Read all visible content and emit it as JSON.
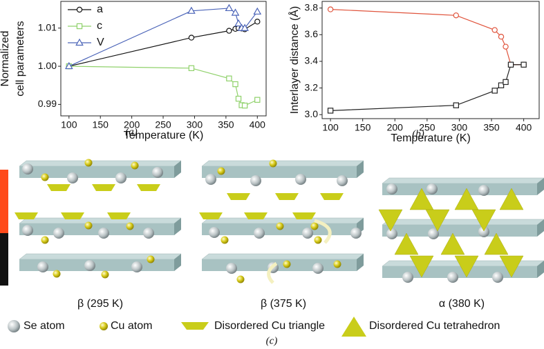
{
  "chart_data": [
    {
      "type": "line",
      "panel_label": "(a)",
      "xlabel": "Temperature (K)",
      "ylabel": [
        "Normalized",
        "cell parameters"
      ],
      "x": [
        100,
        295,
        355,
        365,
        370,
        375,
        380,
        400
      ],
      "xlim": [
        87,
        414
      ],
      "xticks": [
        100,
        150,
        200,
        250,
        300,
        350,
        400
      ],
      "ylim": [
        0.987,
        1.017
      ],
      "yticks": [
        0.99,
        {
          "value": 1.0,
          "label": "1.00"
        },
        1.01
      ],
      "legend": "upper left",
      "series": [
        {
          "name": "a",
          "color": "#111111",
          "marker": "circle",
          "values": [
            1.0,
            1.0075,
            1.0093,
            1.0098,
            1.01,
            1.0099,
            1.0097,
            1.0117
          ]
        },
        {
          "name": "c",
          "color": "#8fd16a",
          "marker": "square",
          "values": [
            1.0,
            0.9995,
            0.9968,
            0.9953,
            0.9915,
            0.9898,
            0.9897,
            0.9912
          ]
        },
        {
          "name": "V",
          "color": "#4a63b8",
          "marker": "triangle",
          "values": [
            1.0,
            1.0145,
            1.0152,
            1.014,
            1.0112,
            1.01,
            1.01,
            1.0143
          ]
        }
      ]
    },
    {
      "type": "line",
      "panel_label": "(b)",
      "xlabel": "Temperature (K)",
      "ylabel": [
        "Interlayer distance (Å)"
      ],
      "x": [
        100,
        295,
        355,
        365,
        372,
        380,
        400
      ],
      "xlim": [
        87,
        424
      ],
      "xticks": [
        100,
        150,
        200,
        250,
        300,
        350,
        400
      ],
      "ylim": [
        2.97,
        3.85
      ],
      "yticks": [
        {
          "value": 3.0,
          "label": "3.0"
        },
        3.2,
        3.4,
        3.6,
        3.8
      ],
      "series": [
        {
          "color": "#e0533b",
          "marker": "circle",
          "values": [
            3.79,
            3.745,
            3.635,
            3.585,
            3.51,
            3.375,
            3.375
          ]
        },
        {
          "color": "#222222",
          "marker": "square",
          "values": [
            3.03,
            3.07,
            3.18,
            3.22,
            3.245,
            3.375,
            3.375
          ]
        }
      ]
    }
  ],
  "diagram": {
    "panel_label": "(c)",
    "captions": [
      "β (295 K)",
      "β (375 K)",
      "α (380 K)"
    ],
    "legend": [
      "Se atom",
      "Cu atom",
      "Disordered Cu triangle",
      "Disordered Cu tetrahedron"
    ]
  }
}
